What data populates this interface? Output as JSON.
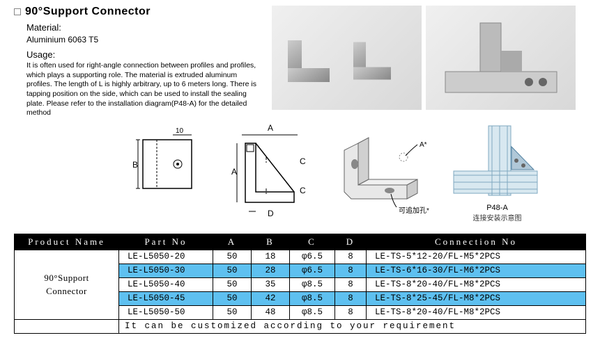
{
  "header": {
    "title": "90°Support Connector",
    "material_label": "Material:",
    "material_value": "Aluminium 6063 T5",
    "usage_label": "Usage:",
    "usage_text": "It is often used for right-angle connection between profiles and profiles, which plays a supporting role. The material is extruded aluminum profiles. The length of L is highly arbitrary, up to 6 meters long. There is tapping position on the side, which can be used to install the sealing plate. Please refer to the installation diagram(P48-A) for the detailed method"
  },
  "diagrams": {
    "dim_labels": {
      "a": "A",
      "b": "B",
      "c": "C",
      "d": "D"
    },
    "dim_10": "10",
    "add_hole": "可追加孔*",
    "assembly_code": "P48-A",
    "assembly_zh": "连接安装示意图",
    "a_mark": "A*"
  },
  "table": {
    "headers": {
      "name": "Product Name",
      "part": "Part No",
      "a": "A",
      "b": "B",
      "c": "C",
      "d": "D",
      "conn": "Connection No"
    },
    "product_name": "90°Support Connector",
    "rows": [
      {
        "part": "LE-L5050-20",
        "a": "50",
        "b": "18",
        "c": "φ6.5",
        "d": "8",
        "conn": "LE-TS-5*12-20/FL-M5*2PCS",
        "hl": false
      },
      {
        "part": "LE-L5050-30",
        "a": "50",
        "b": "28",
        "c": "φ6.5",
        "d": "8",
        "conn": "LE-TS-6*16-30/FL-M6*2PCS",
        "hl": true
      },
      {
        "part": "LE-L5050-40",
        "a": "50",
        "b": "35",
        "c": "φ8.5",
        "d": "8",
        "conn": "LE-TS-8*20-40/FL-M8*2PCS",
        "hl": false
      },
      {
        "part": "LE-L5050-45",
        "a": "50",
        "b": "42",
        "c": "φ8.5",
        "d": "8",
        "conn": "LE-TS-8*25-45/FL-M8*2PCS",
        "hl": true
      },
      {
        "part": "LE-L5050-50",
        "a": "50",
        "b": "48",
        "c": "φ8.5",
        "d": "8",
        "conn": "LE-TS-8*20-40/FL-M8*2PCS",
        "hl": false
      }
    ],
    "customize": "It can be customized according to your requirement"
  },
  "colors": {
    "highlight": "#5ec0f0",
    "header_bg": "#000000",
    "header_fg": "#ffffff"
  }
}
